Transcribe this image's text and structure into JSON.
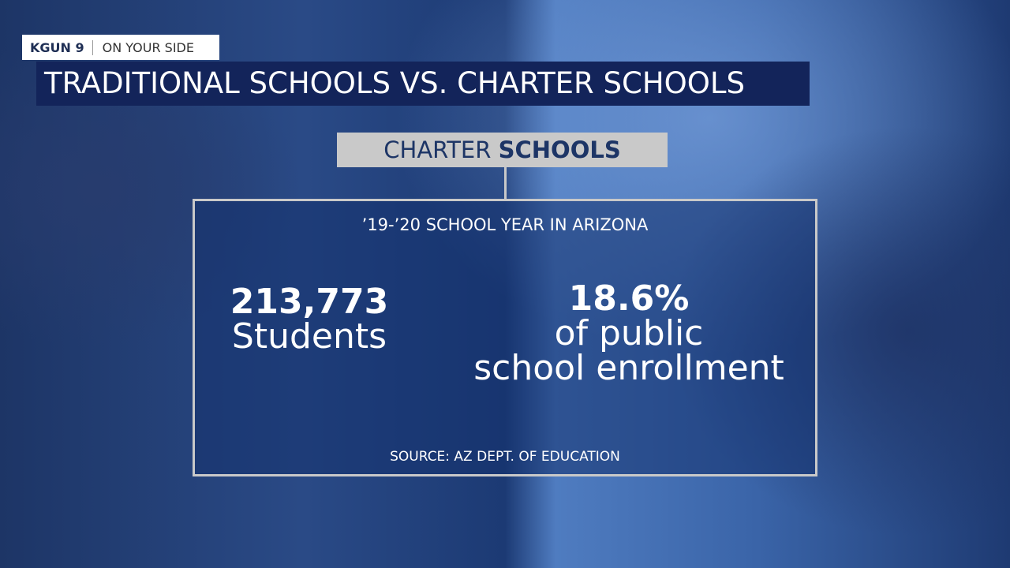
{
  "bug": {
    "brand": "KGUN 9",
    "tagline": "ON YOUR SIDE"
  },
  "headline": "TRADITIONAL SCHOOLS VS. CHARTER SCHOOLS",
  "section": {
    "light": "CHARTER",
    "bold": "SCHOOLS"
  },
  "panel": {
    "subtitle": "’19-’20 SCHOOL YEAR IN ARIZONA",
    "stats": [
      {
        "value": "213,773",
        "lines": [
          "Students"
        ]
      },
      {
        "value": "18.6%",
        "lines": [
          "of public",
          "school enrollment"
        ]
      }
    ],
    "source": "SOURCE: AZ DEPT. OF EDUCATION"
  }
}
